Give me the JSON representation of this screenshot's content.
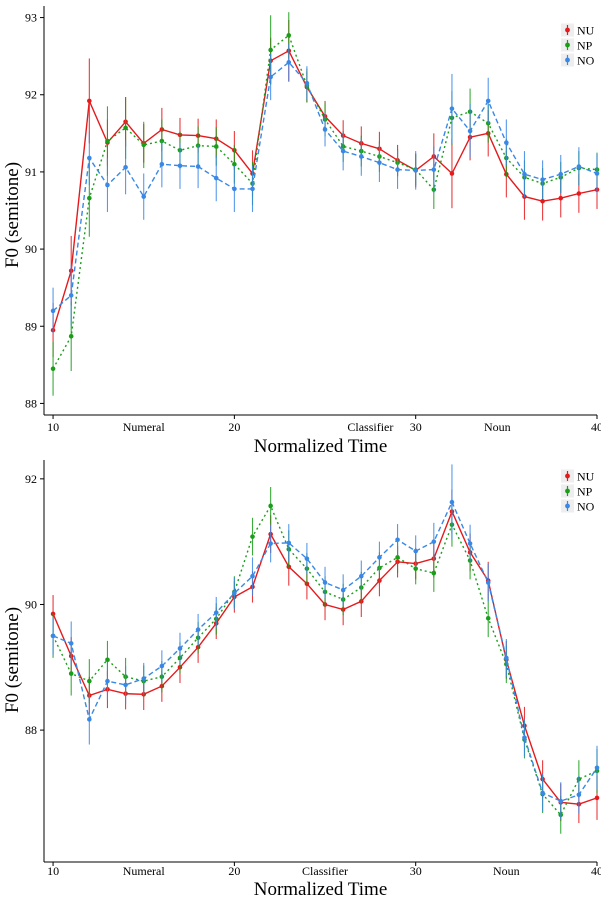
{
  "colors": {
    "NU": "#e41a1c",
    "NP": "#1a9e1a",
    "NO": "#3a88e6"
  },
  "chart_data": [
    {
      "type": "line",
      "title": "",
      "xlabel": "Normalized Time",
      "ylabel": "F0 (semitone)",
      "xlim": [
        9.5,
        40
      ],
      "ylim": [
        87.85,
        93.15
      ],
      "xticks": [
        10,
        20,
        30,
        40
      ],
      "yticks": [
        88,
        89,
        90,
        91,
        92,
        93
      ],
      "xtick_labels": [
        "10",
        "20",
        "30",
        "40"
      ],
      "ytick_labels": [
        "88",
        "89",
        "90",
        "91",
        "92",
        "93"
      ],
      "region_labels": [
        {
          "x": 15,
          "text": "Numeral"
        },
        {
          "x": 27.5,
          "text": "Classifier"
        },
        {
          "x": 34.5,
          "text": "Noun"
        }
      ],
      "legend": {
        "position": "top-right",
        "entries": [
          "NU",
          "NP",
          "NO"
        ]
      },
      "grid": false,
      "x": [
        10,
        11,
        12,
        13,
        14,
        15,
        16,
        17,
        18,
        19,
        20,
        21,
        22,
        23,
        24,
        25,
        26,
        27,
        28,
        29,
        30,
        31,
        32,
        33,
        34,
        35,
        36,
        37,
        38,
        39,
        40
      ],
      "series": [
        {
          "name": "NU",
          "color": "#e41a1c",
          "dash": "solid",
          "values": [
            88.95,
            89.72,
            91.92,
            91.38,
            91.65,
            91.37,
            91.55,
            91.48,
            91.47,
            91.43,
            91.28,
            90.98,
            92.44,
            92.57,
            92.1,
            91.72,
            91.47,
            91.37,
            91.3,
            91.15,
            91.02,
            91.2,
            90.98,
            91.45,
            91.5,
            90.97,
            90.68,
            90.62,
            90.66,
            90.72,
            90.77
          ],
          "err": [
            0.35,
            0.45,
            0.55,
            0.3,
            0.32,
            0.25,
            0.28,
            0.22,
            0.22,
            0.25,
            0.25,
            0.3,
            0.3,
            0.4,
            0.2,
            0.2,
            0.2,
            0.22,
            0.22,
            0.2,
            0.22,
            0.3,
            0.45,
            0.3,
            0.3,
            0.3,
            0.3,
            0.25,
            0.25,
            0.25,
            0.25
          ]
        },
        {
          "name": "NP",
          "color": "#1a9e1a",
          "dash": "2,3",
          "values": [
            88.45,
            88.87,
            90.66,
            91.4,
            91.57,
            91.35,
            91.4,
            91.28,
            91.34,
            91.33,
            91.1,
            90.85,
            92.58,
            92.77,
            92.12,
            91.68,
            91.33,
            91.27,
            91.2,
            91.12,
            91.03,
            90.77,
            91.7,
            91.78,
            91.63,
            91.18,
            90.93,
            90.85,
            90.93,
            91.05,
            91.03
          ],
          "err": [
            0.35,
            0.45,
            0.5,
            0.45,
            0.4,
            0.3,
            0.28,
            0.25,
            0.25,
            0.25,
            0.25,
            0.28,
            0.45,
            0.3,
            0.22,
            0.22,
            0.2,
            0.2,
            0.2,
            0.18,
            0.2,
            0.25,
            0.35,
            0.3,
            0.25,
            0.25,
            0.22,
            0.2,
            0.2,
            0.22,
            0.22
          ]
        },
        {
          "name": "NO",
          "color": "#3a88e6",
          "dash": "5,3",
          "values": [
            89.2,
            89.4,
            91.18,
            90.83,
            91.06,
            90.68,
            91.1,
            91.08,
            91.07,
            90.92,
            90.78,
            90.78,
            92.23,
            92.42,
            92.15,
            91.55,
            91.27,
            91.2,
            91.12,
            91.03,
            91.02,
            91.03,
            91.82,
            91.53,
            91.92,
            91.38,
            90.97,
            90.9,
            90.97,
            91.07,
            90.98
          ],
          "err": [
            0.3,
            0.4,
            0.35,
            0.35,
            0.35,
            0.3,
            0.3,
            0.3,
            0.28,
            0.3,
            0.3,
            0.3,
            0.3,
            0.25,
            0.22,
            0.22,
            0.25,
            0.25,
            0.25,
            0.25,
            0.25,
            0.3,
            0.45,
            0.35,
            0.3,
            0.3,
            0.3,
            0.25,
            0.25,
            0.25,
            0.25
          ]
        }
      ]
    },
    {
      "type": "line",
      "title": "",
      "xlabel": "Normalized Time",
      "ylabel": "F0 (semitone)",
      "xlim": [
        9.5,
        40
      ],
      "ylim": [
        85.9,
        92.3
      ],
      "xticks": [
        10,
        20,
        30,
        40
      ],
      "yticks": [
        88,
        90,
        92
      ],
      "xtick_labels": [
        "10",
        "20",
        "30",
        "40"
      ],
      "ytick_labels": [
        "88",
        "90",
        "92"
      ],
      "region_labels": [
        {
          "x": 15,
          "text": "Numeral"
        },
        {
          "x": 25,
          "text": "Classifier"
        },
        {
          "x": 35,
          "text": "Noun"
        }
      ],
      "legend": {
        "position": "top-right",
        "entries": [
          "NU",
          "NP",
          "NO"
        ]
      },
      "grid": false,
      "x": [
        10,
        11,
        12,
        13,
        14,
        15,
        16,
        17,
        18,
        19,
        20,
        21,
        22,
        23,
        24,
        25,
        26,
        27,
        28,
        29,
        30,
        31,
        32,
        33,
        34,
        35,
        36,
        37,
        38,
        39,
        40
      ],
      "series": [
        {
          "name": "NU",
          "color": "#e41a1c",
          "dash": "solid",
          "values": [
            89.85,
            89.18,
            88.55,
            88.65,
            88.58,
            88.57,
            88.7,
            89.0,
            89.32,
            89.7,
            90.12,
            90.28,
            91.12,
            90.6,
            90.33,
            90.0,
            89.92,
            90.05,
            90.38,
            90.68,
            90.65,
            90.73,
            91.48,
            90.83,
            90.38,
            89.12,
            88.07,
            87.22,
            86.85,
            86.82,
            86.92
          ],
          "err": [
            0.3,
            0.3,
            0.3,
            0.3,
            0.25,
            0.25,
            0.25,
            0.25,
            0.25,
            0.25,
            0.25,
            0.25,
            0.3,
            0.3,
            0.25,
            0.25,
            0.25,
            0.25,
            0.25,
            0.25,
            0.25,
            0.3,
            0.35,
            0.3,
            0.3,
            0.3,
            0.3,
            0.3,
            0.3,
            0.3,
            0.35
          ]
        },
        {
          "name": "NP",
          "color": "#1a9e1a",
          "dash": "2,3",
          "values": [
            89.5,
            88.9,
            88.78,
            89.12,
            88.85,
            88.78,
            88.85,
            89.15,
            89.47,
            89.77,
            90.2,
            91.08,
            91.57,
            90.88,
            90.57,
            90.2,
            90.08,
            90.27,
            90.58,
            90.75,
            90.57,
            90.5,
            91.27,
            90.7,
            89.78,
            89.05,
            87.85,
            86.98,
            86.65,
            87.22,
            87.35
          ],
          "err": [
            0.35,
            0.35,
            0.35,
            0.3,
            0.3,
            0.25,
            0.25,
            0.25,
            0.25,
            0.25,
            0.25,
            0.3,
            0.3,
            0.3,
            0.25,
            0.25,
            0.25,
            0.25,
            0.25,
            0.25,
            0.25,
            0.3,
            0.35,
            0.3,
            0.3,
            0.3,
            0.3,
            0.3,
            0.3,
            0.3,
            0.35
          ]
        },
        {
          "name": "NO",
          "color": "#3a88e6",
          "dash": "5,3",
          "values": [
            89.5,
            89.38,
            88.17,
            88.78,
            88.72,
            88.82,
            89.02,
            89.3,
            89.6,
            89.87,
            90.18,
            90.45,
            90.97,
            90.98,
            90.73,
            90.35,
            90.23,
            90.45,
            90.75,
            91.03,
            90.85,
            91.0,
            91.63,
            90.97,
            90.35,
            89.15,
            87.88,
            87.0,
            86.87,
            86.97,
            87.4
          ],
          "err": [
            0.3,
            0.35,
            0.4,
            0.3,
            0.3,
            0.25,
            0.25,
            0.25,
            0.25,
            0.25,
            0.25,
            0.3,
            0.3,
            0.3,
            0.25,
            0.25,
            0.25,
            0.25,
            0.25,
            0.25,
            0.25,
            0.3,
            0.6,
            0.3,
            0.3,
            0.3,
            0.3,
            0.3,
            0.3,
            0.3,
            0.35
          ]
        }
      ]
    }
  ]
}
